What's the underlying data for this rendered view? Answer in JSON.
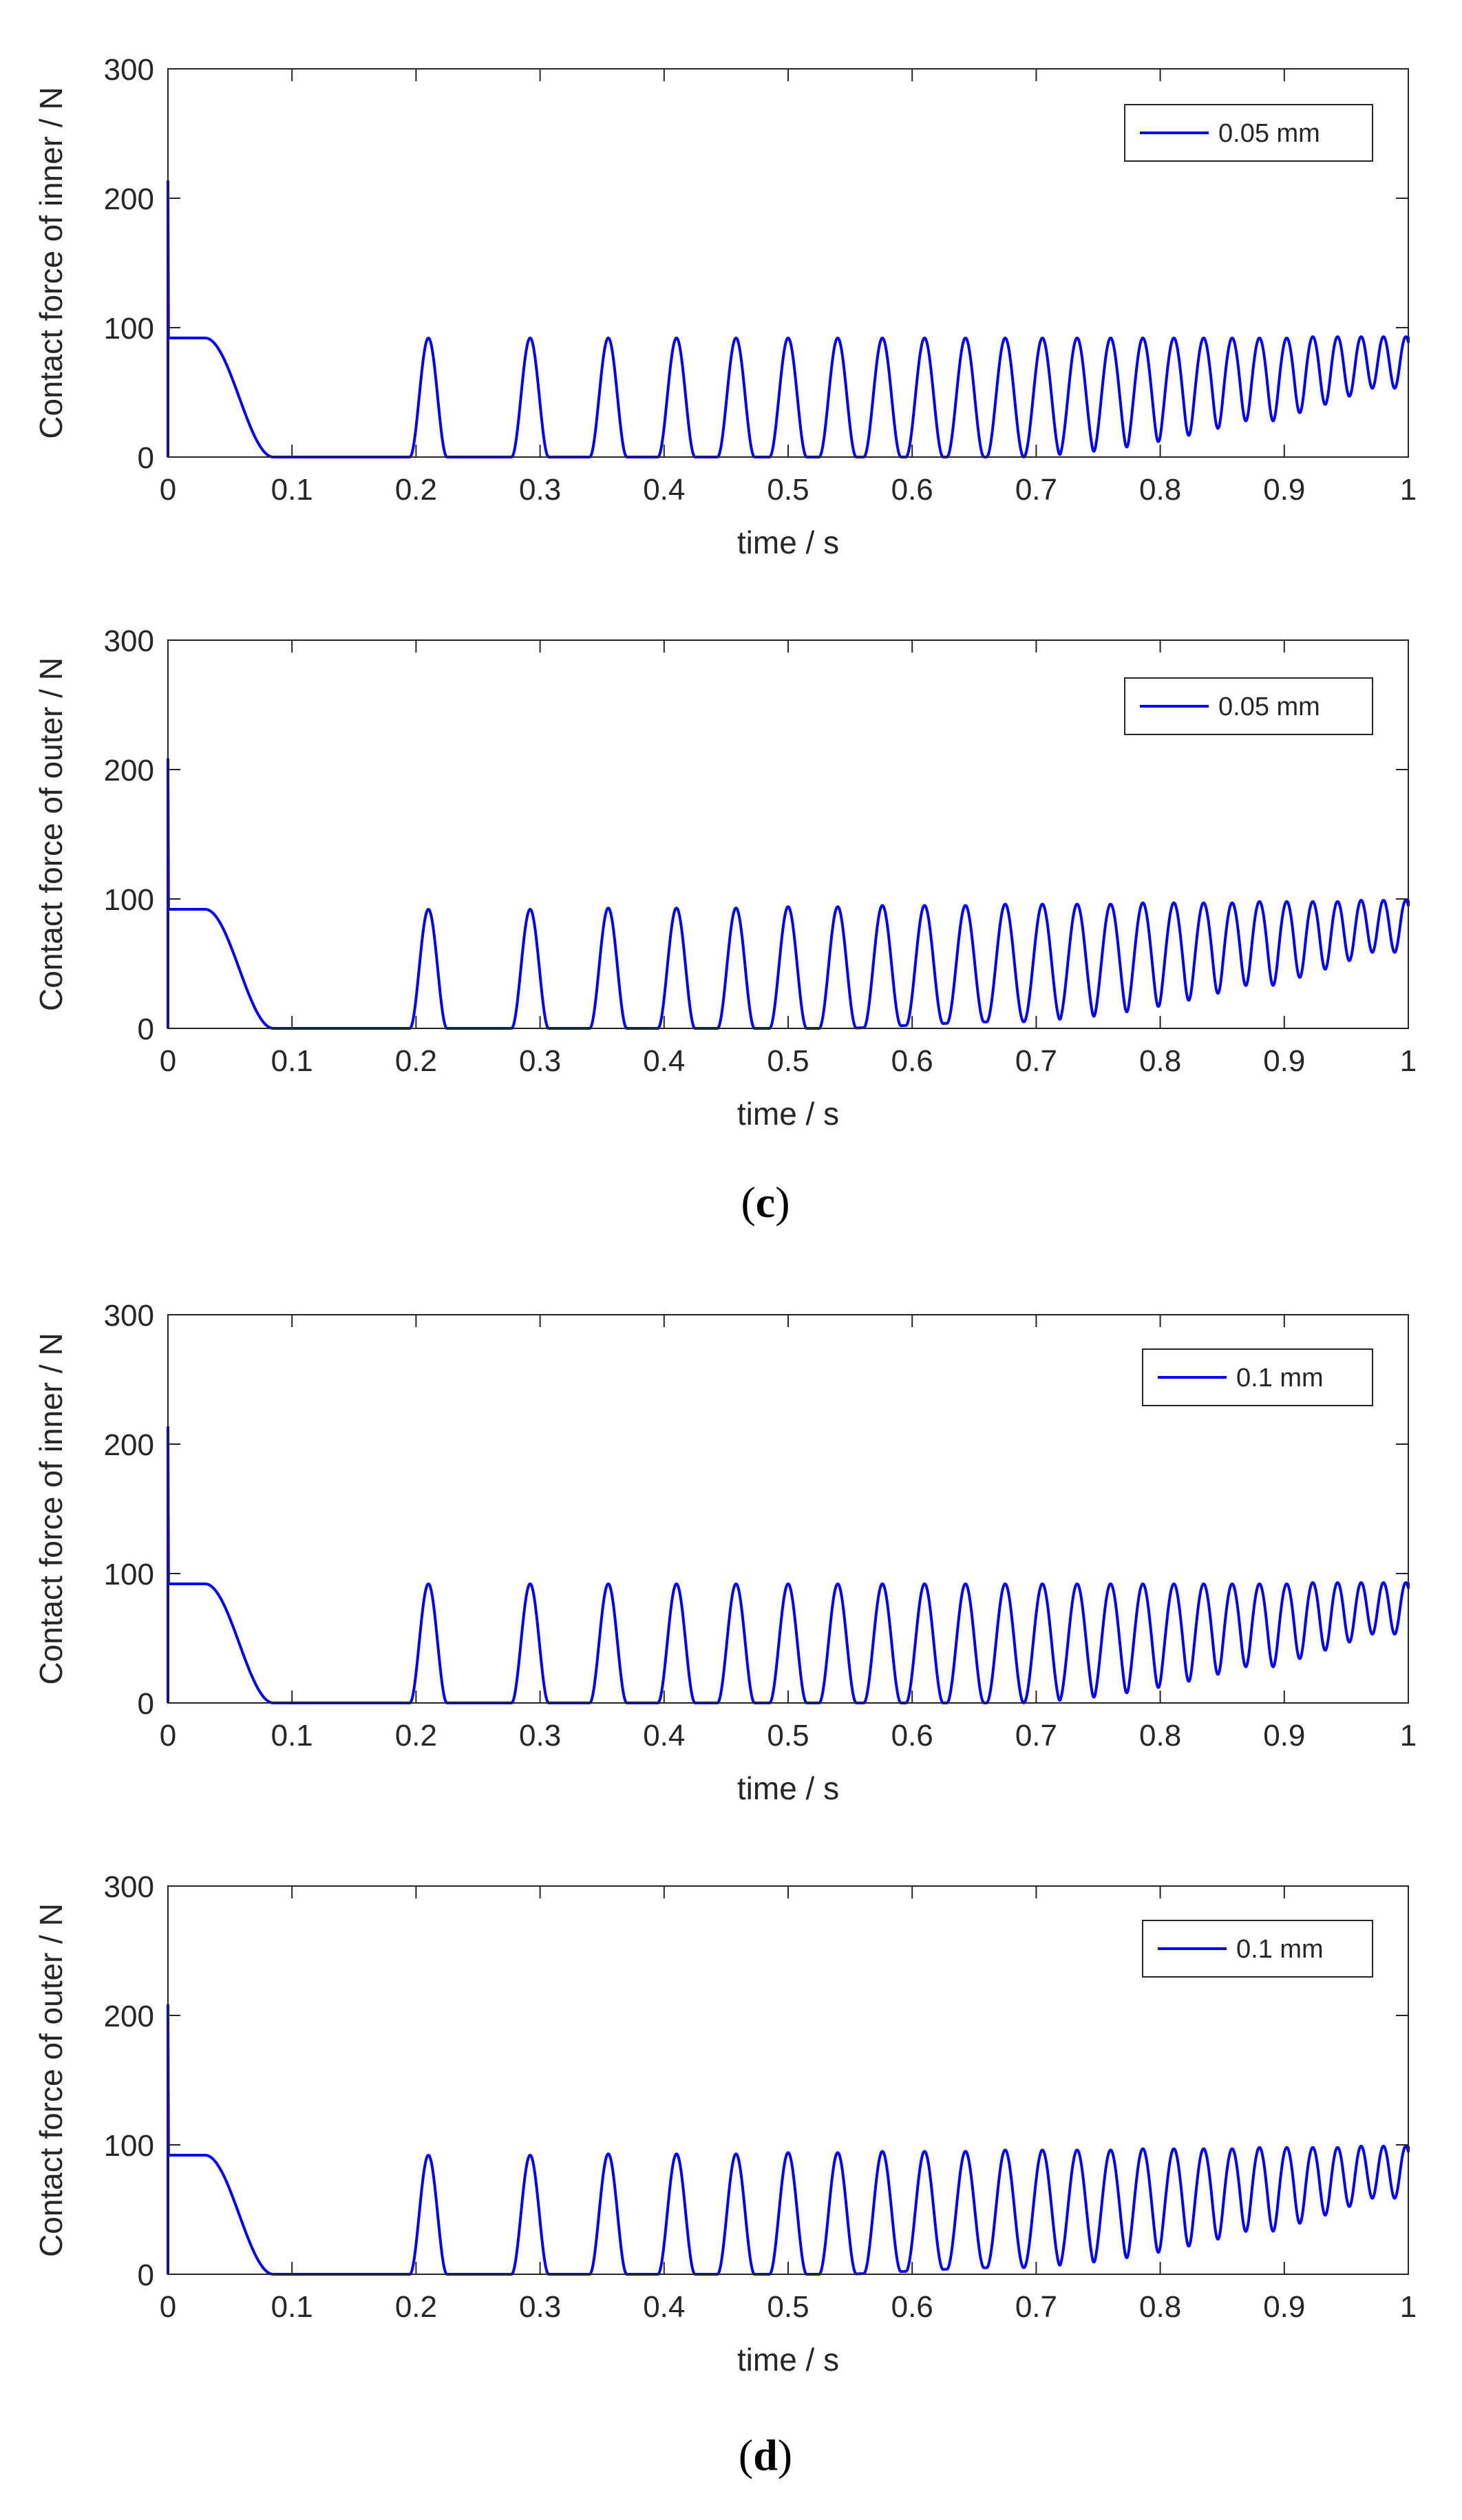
{
  "chart_data": [
    {
      "type": "line",
      "xlabel": "time / s",
      "ylabel": "Contact force of inner / N",
      "xlim": [
        0,
        1
      ],
      "ylim": [
        0,
        300
      ],
      "xticks": [
        "0",
        "0.1",
        "0.2",
        "0.3",
        "0.4",
        "0.5",
        "0.6",
        "0.7",
        "0.8",
        "0.9",
        "1"
      ],
      "yticks": [
        "0",
        "100",
        "200",
        "300"
      ],
      "legend": "0.05 mm",
      "legend_position": "top-right",
      "series": [
        {
          "name": "0.05 mm",
          "color": "#0000ff",
          "initial_spike": 213,
          "plateau": 92,
          "plateau_end_s": 0.03,
          "decay_end_s": 0.085,
          "peak_times_s": [
            0.21,
            0.292,
            0.355,
            0.41,
            0.458,
            0.5,
            0.54,
            0.576,
            0.61,
            0.643,
            0.675,
            0.705,
            0.733,
            0.76,
            0.786,
            0.811,
            0.835,
            0.858,
            0.88,
            0.902,
            0.923,
            0.943,
            0.962,
            0.98,
            0.998
          ],
          "peak_values": [
            92,
            92,
            92,
            92,
            92,
            92,
            92,
            92,
            92,
            92,
            92,
            92,
            92,
            92,
            92,
            92,
            92,
            92,
            92,
            92,
            93,
            93,
            93,
            93,
            93
          ],
          "baseline": 0
        }
      ]
    },
    {
      "type": "line",
      "xlabel": "time / s",
      "ylabel": "Contact force of outer / N",
      "xlim": [
        0,
        1
      ],
      "ylim": [
        0,
        300
      ],
      "xticks": [
        "0",
        "0.1",
        "0.2",
        "0.3",
        "0.4",
        "0.5",
        "0.6",
        "0.7",
        "0.8",
        "0.9",
        "1"
      ],
      "yticks": [
        "0",
        "100",
        "200",
        "300"
      ],
      "legend": "0.05 mm",
      "legend_position": "top-right",
      "series": [
        {
          "name": "0.05 mm",
          "color": "#0000ff",
          "initial_spike": 208,
          "plateau": 92,
          "plateau_end_s": 0.03,
          "decay_end_s": 0.085,
          "peak_times_s": [
            0.21,
            0.292,
            0.355,
            0.41,
            0.458,
            0.5,
            0.54,
            0.576,
            0.61,
            0.643,
            0.675,
            0.705,
            0.733,
            0.76,
            0.786,
            0.811,
            0.835,
            0.858,
            0.88,
            0.902,
            0.923,
            0.943,
            0.962,
            0.98,
            0.998
          ],
          "peak_values": [
            92,
            92,
            93,
            93,
            93,
            94,
            94,
            95,
            95,
            95,
            96,
            96,
            96,
            96,
            97,
            97,
            97,
            97,
            98,
            98,
            98,
            98,
            99,
            99,
            99
          ],
          "baseline": 5
        }
      ]
    },
    {
      "type": "line",
      "xlabel": "time / s",
      "ylabel": "Contact force of inner / N",
      "xlim": [
        0,
        1
      ],
      "ylim": [
        0,
        300
      ],
      "xticks": [
        "0",
        "0.1",
        "0.2",
        "0.3",
        "0.4",
        "0.5",
        "0.6",
        "0.7",
        "0.8",
        "0.9",
        "1"
      ],
      "yticks": [
        "0",
        "100",
        "200",
        "300"
      ],
      "legend": "0.1 mm",
      "legend_position": "top-right",
      "series": [
        {
          "name": "0.1 mm",
          "color": "#0000ff",
          "initial_spike": 213,
          "plateau": 92,
          "plateau_end_s": 0.03,
          "decay_end_s": 0.085,
          "peak_times_s": [
            0.21,
            0.292,
            0.355,
            0.41,
            0.458,
            0.5,
            0.54,
            0.576,
            0.61,
            0.643,
            0.675,
            0.705,
            0.733,
            0.76,
            0.786,
            0.811,
            0.835,
            0.858,
            0.88,
            0.902,
            0.923,
            0.943,
            0.962,
            0.98,
            0.998
          ],
          "peak_values": [
            92,
            92,
            92,
            92,
            92,
            92,
            92,
            92,
            92,
            92,
            92,
            92,
            92,
            92,
            92,
            92,
            92,
            92,
            92,
            92,
            93,
            93,
            93,
            93,
            93
          ],
          "baseline": 0
        }
      ]
    },
    {
      "type": "line",
      "xlabel": "time / s",
      "ylabel": "Contact force of outer / N",
      "xlim": [
        0,
        1
      ],
      "ylim": [
        0,
        300
      ],
      "xticks": [
        "0",
        "0.1",
        "0.2",
        "0.3",
        "0.4",
        "0.5",
        "0.6",
        "0.7",
        "0.8",
        "0.9",
        "1"
      ],
      "yticks": [
        "0",
        "100",
        "200",
        "300"
      ],
      "legend": "0.1 mm",
      "legend_position": "top-right",
      "series": [
        {
          "name": "0.1 mm",
          "color": "#0000ff",
          "initial_spike": 208,
          "plateau": 92,
          "plateau_end_s": 0.03,
          "decay_end_s": 0.085,
          "peak_times_s": [
            0.21,
            0.292,
            0.355,
            0.41,
            0.458,
            0.5,
            0.54,
            0.576,
            0.61,
            0.643,
            0.675,
            0.705,
            0.733,
            0.76,
            0.786,
            0.811,
            0.835,
            0.858,
            0.88,
            0.902,
            0.923,
            0.943,
            0.962,
            0.98,
            0.998
          ],
          "peak_values": [
            92,
            92,
            93,
            93,
            93,
            94,
            94,
            95,
            95,
            95,
            96,
            96,
            96,
            96,
            97,
            97,
            97,
            97,
            98,
            98,
            98,
            98,
            99,
            99,
            99
          ],
          "baseline": 5
        }
      ]
    }
  ],
  "captions": {
    "c": "c",
    "d": "d"
  }
}
